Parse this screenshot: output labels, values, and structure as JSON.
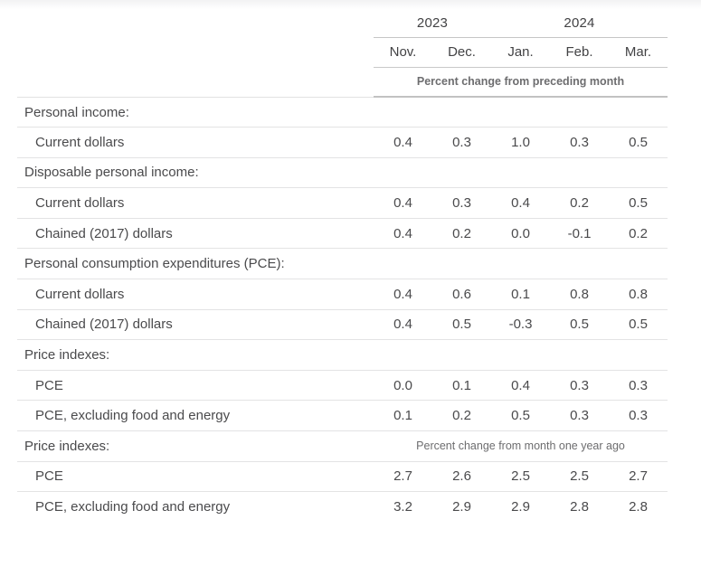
{
  "table": {
    "col_groups": [
      {
        "label": "2023",
        "span": 2
      },
      {
        "label": "2024",
        "span": 3
      }
    ],
    "columns": [
      "Nov.",
      "Dec.",
      "Jan.",
      "Feb.",
      "Mar."
    ],
    "unit_header": "Percent change from preceding month",
    "sections": [
      {
        "heading": "Personal income:",
        "rows": [
          {
            "label": "Current dollars",
            "values": [
              "0.4",
              "0.3",
              "1.0",
              "0.3",
              "0.5"
            ]
          }
        ]
      },
      {
        "heading": "Disposable personal income:",
        "rows": [
          {
            "label": "Current dollars",
            "values": [
              "0.4",
              "0.3",
              "0.4",
              "0.2",
              "0.5"
            ]
          },
          {
            "label": "Chained (2017) dollars",
            "values": [
              "0.4",
              "0.2",
              "0.0",
              "-0.1",
              "0.2"
            ]
          }
        ]
      },
      {
        "heading": "Personal consumption expenditures (PCE):",
        "rows": [
          {
            "label": "Current dollars",
            "values": [
              "0.4",
              "0.6",
              "0.1",
              "0.8",
              "0.8"
            ]
          },
          {
            "label": "Chained (2017) dollars",
            "values": [
              "0.4",
              "0.5",
              "-0.3",
              "0.5",
              "0.5"
            ]
          }
        ]
      },
      {
        "heading": "Price indexes:",
        "rows": [
          {
            "label": "PCE",
            "values": [
              "0.0",
              "0.1",
              "0.4",
              "0.3",
              "0.3"
            ]
          },
          {
            "label": "PCE, excluding food and energy",
            "values": [
              "0.1",
              "0.2",
              "0.5",
              "0.3",
              "0.3"
            ]
          }
        ]
      },
      {
        "heading": "Price indexes:",
        "heading_note": "Percent change from month one year ago",
        "rows": [
          {
            "label": "PCE",
            "values": [
              "2.7",
              "2.6",
              "2.5",
              "2.5",
              "2.7"
            ]
          },
          {
            "label": "PCE, excluding food and energy",
            "values": [
              "3.2",
              "2.9",
              "2.9",
              "2.8",
              "2.8"
            ]
          }
        ]
      }
    ],
    "colors": {
      "text_main": "#4a4a4c",
      "text_muted": "#6d6d6f",
      "border_light": "#e3e3e4",
      "border_dark": "#c6c6c6",
      "top_fade": "#f2f2f3"
    }
  }
}
